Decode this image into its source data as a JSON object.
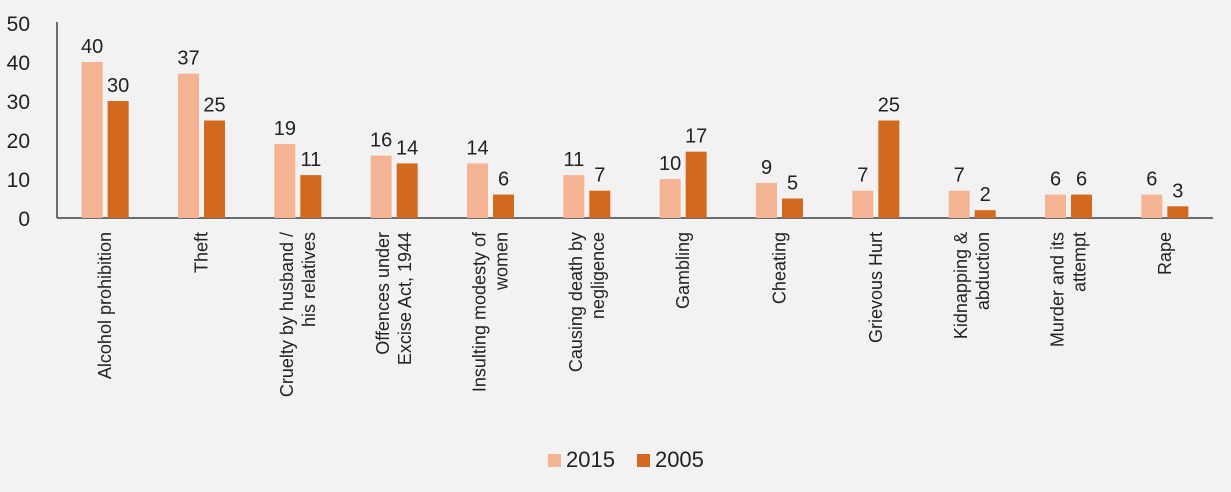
{
  "chart_data": {
    "type": "bar",
    "categories": [
      [
        "Alcohol prohibition"
      ],
      [
        "Theft"
      ],
      [
        "Cruelty by husband /",
        "his relatives"
      ],
      [
        "Offences under",
        "Excise Act, 1944"
      ],
      [
        "Insulting modesty of",
        "women"
      ],
      [
        "Causing death by",
        "negligence"
      ],
      [
        "Gambling"
      ],
      [
        "Cheating"
      ],
      [
        "Grievous Hurt"
      ],
      [
        "Kidnapping &",
        "abduction"
      ],
      [
        "Murder and its",
        "attempt"
      ],
      [
        "Rape"
      ]
    ],
    "series": [
      {
        "name": "2015",
        "color": "#f4b393",
        "values": [
          40,
          37,
          19,
          16,
          14,
          11,
          10,
          9,
          7,
          7,
          6,
          6
        ]
      },
      {
        "name": "2005",
        "color": "#d2691e",
        "values": [
          30,
          25,
          11,
          14,
          6,
          7,
          17,
          5,
          25,
          2,
          6,
          3
        ]
      }
    ],
    "yticks": [
      "0",
      "10",
      "20",
      "30",
      "40",
      "50"
    ],
    "ylim": [
      0,
      50
    ],
    "grid": false,
    "legend_position": "bottom"
  }
}
